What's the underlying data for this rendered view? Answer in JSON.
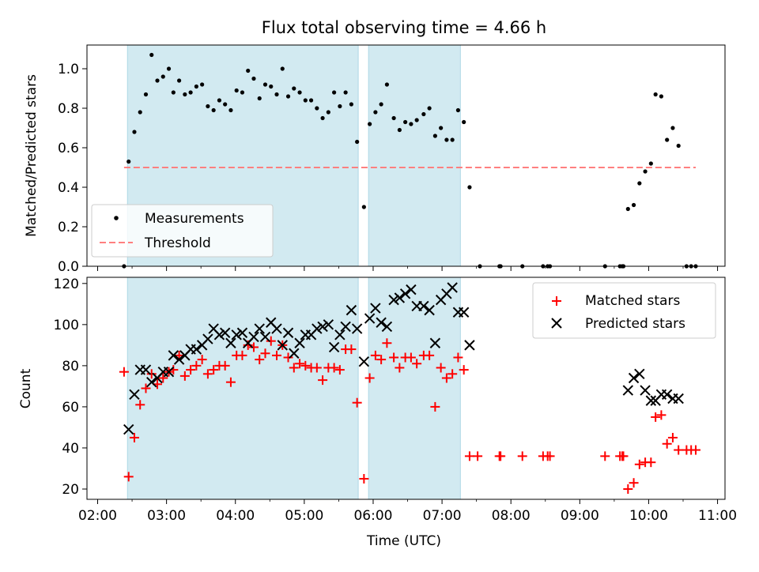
{
  "chart_data": [
    {
      "type": "scatter",
      "title": "Flux total observing time = 4.66 h",
      "xlabel": "",
      "ylabel": "Matched/Predicted stars",
      "xlim": [
        "02:00",
        "11:00"
      ],
      "ylim": [
        0,
        1.12
      ],
      "yticks": [
        "0.0",
        "0.2",
        "0.4",
        "0.6",
        "0.8",
        "1.0"
      ],
      "shaded_intervals": [
        [
          "02:26",
          "05:47"
        ],
        [
          "05:56",
          "07:16"
        ]
      ],
      "shade_color": "#add8e6",
      "legend": {
        "position": "lower-left",
        "entries": [
          "Measurements",
          "Threshold"
        ]
      },
      "series": [
        {
          "name": "Measurements",
          "color": "#000000",
          "marker": "dot",
          "points": [
            [
              "02:23",
              0.0
            ],
            [
              "02:27",
              0.53
            ],
            [
              "02:32",
              0.68
            ],
            [
              "02:37",
              0.78
            ],
            [
              "02:42",
              0.87
            ],
            [
              "02:47",
              1.07
            ],
            [
              "02:52",
              0.94
            ],
            [
              "02:57",
              0.96
            ],
            [
              "03:02",
              1.0
            ],
            [
              "03:06",
              0.88
            ],
            [
              "03:11",
              0.94
            ],
            [
              "03:16",
              0.87
            ],
            [
              "03:21",
              0.88
            ],
            [
              "03:26",
              0.91
            ],
            [
              "03:31",
              0.92
            ],
            [
              "03:36",
              0.81
            ],
            [
              "03:41",
              0.79
            ],
            [
              "03:46",
              0.84
            ],
            [
              "03:51",
              0.82
            ],
            [
              "03:56",
              0.79
            ],
            [
              "04:01",
              0.89
            ],
            [
              "04:06",
              0.88
            ],
            [
              "04:11",
              0.99
            ],
            [
              "04:16",
              0.95
            ],
            [
              "04:21",
              0.85
            ],
            [
              "04:26",
              0.92
            ],
            [
              "04:31",
              0.91
            ],
            [
              "04:36",
              0.87
            ],
            [
              "04:41",
              1.0
            ],
            [
              "04:46",
              0.86
            ],
            [
              "04:51",
              0.9
            ],
            [
              "04:56",
              0.88
            ],
            [
              "05:01",
              0.84
            ],
            [
              "05:06",
              0.84
            ],
            [
              "05:11",
              0.8
            ],
            [
              "05:16",
              0.75
            ],
            [
              "05:21",
              0.78
            ],
            [
              "05:26",
              0.88
            ],
            [
              "05:31",
              0.81
            ],
            [
              "05:36",
              0.88
            ],
            [
              "05:41",
              0.82
            ],
            [
              "05:46",
              0.63
            ],
            [
              "05:52",
              0.3
            ],
            [
              "05:57",
              0.72
            ],
            [
              "06:02",
              0.78
            ],
            [
              "06:07",
              0.82
            ],
            [
              "06:12",
              0.92
            ],
            [
              "06:18",
              0.75
            ],
            [
              "06:23",
              0.69
            ],
            [
              "06:28",
              0.73
            ],
            [
              "06:33",
              0.72
            ],
            [
              "06:38",
              0.74
            ],
            [
              "06:44",
              0.77
            ],
            [
              "06:49",
              0.8
            ],
            [
              "06:54",
              0.66
            ],
            [
              "06:59",
              0.7
            ],
            [
              "07:04",
              0.64
            ],
            [
              "07:09",
              0.64
            ],
            [
              "07:14",
              0.79
            ],
            [
              "07:19",
              0.73
            ],
            [
              "07:24",
              0.4
            ],
            [
              "07:33",
              0.0
            ],
            [
              "07:50",
              0.0
            ],
            [
              "07:51",
              0.0
            ],
            [
              "08:10",
              0.0
            ],
            [
              "08:28",
              0.0
            ],
            [
              "08:32",
              0.0
            ],
            [
              "08:34",
              0.0
            ],
            [
              "09:22",
              0.0
            ],
            [
              "09:35",
              0.0
            ],
            [
              "09:37",
              0.0
            ],
            [
              "09:38",
              0.0
            ],
            [
              "09:42",
              0.29
            ],
            [
              "09:47",
              0.31
            ],
            [
              "09:52",
              0.42
            ],
            [
              "09:57",
              0.48
            ],
            [
              "10:02",
              0.52
            ],
            [
              "10:06",
              0.87
            ],
            [
              "10:11",
              0.86
            ],
            [
              "10:16",
              0.64
            ],
            [
              "10:21",
              0.7
            ],
            [
              "10:26",
              0.61
            ],
            [
              "10:33",
              0.0
            ],
            [
              "10:37",
              0.0
            ],
            [
              "10:41",
              0.0
            ]
          ]
        },
        {
          "name": "Threshold",
          "color": "#ff7f7f",
          "style": "dashed",
          "points": [
            [
              "02:23",
              0.5
            ],
            [
              "10:41",
              0.5
            ]
          ]
        }
      ]
    },
    {
      "type": "scatter",
      "xlabel": "Time (UTC)",
      "ylabel": "Count",
      "xlim": [
        "02:00",
        "11:00"
      ],
      "ylim": [
        15,
        123
      ],
      "xticks": [
        "02:00",
        "03:00",
        "04:00",
        "05:00",
        "06:00",
        "07:00",
        "08:00",
        "09:00",
        "10:00",
        "11:00"
      ],
      "yticks": [
        "20",
        "40",
        "60",
        "80",
        "100",
        "120"
      ],
      "shaded_intervals": [
        [
          "02:26",
          "05:47"
        ],
        [
          "05:56",
          "07:16"
        ]
      ],
      "shade_color": "#add8e6",
      "legend": {
        "position": "upper-right",
        "entries": [
          "Matched stars",
          "Predicted stars"
        ]
      },
      "series": [
        {
          "name": "Matched stars",
          "color": "#ff0000",
          "marker": "plus",
          "points": [
            [
              "02:23",
              77
            ],
            [
              "02:27",
              26
            ],
            [
              "02:32",
              45
            ],
            [
              "02:37",
              61
            ],
            [
              "02:42",
              69
            ],
            [
              "02:47",
              76
            ],
            [
              "02:52",
              71
            ],
            [
              "02:57",
              74
            ],
            [
              "03:02",
              77
            ],
            [
              "03:06",
              78
            ],
            [
              "03:11",
              85
            ],
            [
              "03:16",
              75
            ],
            [
              "03:21",
              78
            ],
            [
              "03:26",
              80
            ],
            [
              "03:31",
              83
            ],
            [
              "03:36",
              76
            ],
            [
              "03:41",
              78
            ],
            [
              "03:46",
              80
            ],
            [
              "03:51",
              80
            ],
            [
              "03:56",
              72
            ],
            [
              "04:01",
              85
            ],
            [
              "04:06",
              85
            ],
            [
              "04:11",
              90
            ],
            [
              "04:16",
              89
            ],
            [
              "04:21",
              83
            ],
            [
              "04:26",
              86
            ],
            [
              "04:31",
              92
            ],
            [
              "04:36",
              85
            ],
            [
              "04:41",
              90
            ],
            [
              "04:46",
              84
            ],
            [
              "04:51",
              79
            ],
            [
              "04:56",
              81
            ],
            [
              "05:01",
              80
            ],
            [
              "05:06",
              79
            ],
            [
              "05:11",
              79
            ],
            [
              "05:16",
              73
            ],
            [
              "05:21",
              79
            ],
            [
              "05:26",
              79
            ],
            [
              "05:31",
              78
            ],
            [
              "05:36",
              88
            ],
            [
              "05:41",
              88
            ],
            [
              "05:46",
              62
            ],
            [
              "05:52",
              25
            ],
            [
              "05:57",
              74
            ],
            [
              "06:02",
              85
            ],
            [
              "06:07",
              83
            ],
            [
              "06:12",
              91
            ],
            [
              "06:18",
              84
            ],
            [
              "06:23",
              79
            ],
            [
              "06:28",
              84
            ],
            [
              "06:33",
              84
            ],
            [
              "06:38",
              81
            ],
            [
              "06:44",
              85
            ],
            [
              "06:49",
              85
            ],
            [
              "06:54",
              60
            ],
            [
              "06:59",
              79
            ],
            [
              "07:04",
              74
            ],
            [
              "07:09",
              76
            ],
            [
              "07:14",
              84
            ],
            [
              "07:19",
              78
            ],
            [
              "07:24",
              36
            ],
            [
              "07:31",
              36
            ],
            [
              "07:50",
              36
            ],
            [
              "07:51",
              36
            ],
            [
              "08:10",
              36
            ],
            [
              "08:28",
              36
            ],
            [
              "08:32",
              36
            ],
            [
              "08:34",
              36
            ],
            [
              "09:22",
              36
            ],
            [
              "09:35",
              36
            ],
            [
              "09:37",
              36
            ],
            [
              "09:38",
              36
            ],
            [
              "09:42",
              20
            ],
            [
              "09:47",
              23
            ],
            [
              "09:52",
              32
            ],
            [
              "09:57",
              33
            ],
            [
              "10:02",
              33
            ],
            [
              "10:06",
              55
            ],
            [
              "10:11",
              56
            ],
            [
              "10:16",
              42
            ],
            [
              "10:21",
              45
            ],
            [
              "10:26",
              39
            ],
            [
              "10:33",
              39
            ],
            [
              "10:37",
              39
            ],
            [
              "10:41",
              39
            ]
          ]
        },
        {
          "name": "Predicted stars",
          "color": "#000000",
          "marker": "x",
          "points": [
            [
              "02:27",
              49
            ],
            [
              "02:32",
              66
            ],
            [
              "02:37",
              78
            ],
            [
              "02:42",
              78
            ],
            [
              "02:47",
              72
            ],
            [
              "02:52",
              74
            ],
            [
              "02:57",
              77
            ],
            [
              "03:02",
              77
            ],
            [
              "03:06",
              85
            ],
            [
              "03:11",
              83
            ],
            [
              "03:16",
              85
            ],
            [
              "03:21",
              88
            ],
            [
              "03:26",
              88
            ],
            [
              "03:31",
              90
            ],
            [
              "03:36",
              93
            ],
            [
              "03:41",
              98
            ],
            [
              "03:46",
              95
            ],
            [
              "03:51",
              96
            ],
            [
              "03:56",
              91
            ],
            [
              "04:01",
              95
            ],
            [
              "04:06",
              96
            ],
            [
              "04:11",
              91
            ],
            [
              "04:16",
              94
            ],
            [
              "04:21",
              98
            ],
            [
              "04:26",
              94
            ],
            [
              "04:31",
              101
            ],
            [
              "04:36",
              98
            ],
            [
              "04:41",
              90
            ],
            [
              "04:46",
              96
            ],
            [
              "04:51",
              86
            ],
            [
              "04:56",
              91
            ],
            [
              "05:01",
              95
            ],
            [
              "05:06",
              95
            ],
            [
              "05:11",
              98
            ],
            [
              "05:16",
              99
            ],
            [
              "05:21",
              100
            ],
            [
              "05:26",
              89
            ],
            [
              "05:31",
              95
            ],
            [
              "05:36",
              99
            ],
            [
              "05:41",
              107
            ],
            [
              "05:46",
              98
            ],
            [
              "05:52",
              82
            ],
            [
              "05:57",
              103
            ],
            [
              "06:02",
              108
            ],
            [
              "06:07",
              101
            ],
            [
              "06:12",
              99
            ],
            [
              "06:18",
              112
            ],
            [
              "06:23",
              113
            ],
            [
              "06:28",
              115
            ],
            [
              "06:33",
              117
            ],
            [
              "06:38",
              109
            ],
            [
              "06:44",
              109
            ],
            [
              "06:49",
              107
            ],
            [
              "06:54",
              91
            ],
            [
              "06:59",
              112
            ],
            [
              "07:04",
              115
            ],
            [
              "07:09",
              118
            ],
            [
              "07:14",
              106
            ],
            [
              "07:19",
              106
            ],
            [
              "07:24",
              90
            ],
            [
              "09:42",
              68
            ],
            [
              "09:47",
              74
            ],
            [
              "09:52",
              76
            ],
            [
              "09:57",
              68
            ],
            [
              "10:02",
              63
            ],
            [
              "10:06",
              63
            ],
            [
              "10:11",
              66
            ],
            [
              "10:16",
              66
            ],
            [
              "10:21",
              64
            ],
            [
              "10:26",
              64
            ]
          ]
        }
      ]
    }
  ]
}
